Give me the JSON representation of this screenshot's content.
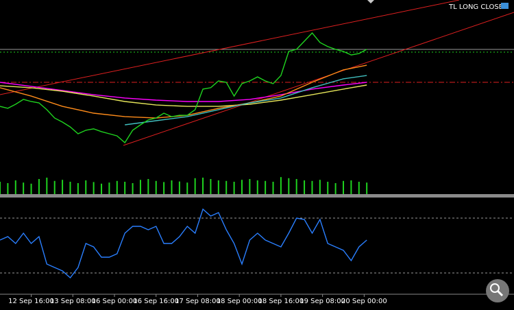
{
  "chart_data": [
    {
      "type": "line",
      "title": "TL LONG CLOSE",
      "x": [
        0,
        3,
        6,
        9,
        12,
        15,
        18,
        21,
        24,
        27,
        30,
        33,
        36,
        39,
        42,
        45,
        48,
        51,
        54,
        57,
        60,
        63,
        66,
        69,
        72,
        75,
        78,
        81,
        84,
        87,
        90,
        93,
        96,
        99,
        102,
        105,
        108,
        111,
        114,
        117,
        120,
        123,
        126,
        129,
        132,
        135,
        138,
        141
      ],
      "xlim": [
        0,
        197.6
      ],
      "xticks": [
        {
          "value": 12,
          "label": "12 Sep 16:00"
        },
        {
          "value": 28,
          "label": "13 Sep 08:00"
        },
        {
          "value": 44,
          "label": "16 Sep 00:00"
        },
        {
          "value": 60,
          "label": "16 Sep 16:00"
        },
        {
          "value": 76,
          "label": "17 Sep 08:00"
        },
        {
          "value": 92,
          "label": "18 Sep 00:00"
        },
        {
          "value": 108,
          "label": "18 Sep 16:00"
        },
        {
          "value": 124,
          "label": "19 Sep 08:00"
        },
        {
          "value": 140,
          "label": "20 Sep 00:00"
        }
      ],
      "ylim": [
        0,
        100
      ],
      "series": [
        {
          "color": "#ff00ff",
          "x": [
            0,
            12,
            24,
            36,
            48,
            60,
            72,
            84,
            96,
            108,
            120,
            132,
            141
          ],
          "values": [
            57.6,
            55.5,
            53.4,
            51.2,
            49.5,
            48.4,
            47.7,
            47.7,
            48.8,
            51.2,
            54.1,
            56.2,
            57.6
          ]
        },
        {
          "color": "#e6e65a",
          "x": [
            0,
            12,
            24,
            36,
            48,
            60,
            72,
            84,
            96,
            108,
            120,
            132,
            141
          ],
          "values": [
            55.8,
            54.8,
            53.0,
            50.5,
            47.7,
            45.9,
            45.2,
            45.2,
            46.3,
            48.4,
            51.2,
            54.1,
            56.2
          ]
        },
        {
          "color": "#ff8c1a",
          "x": [
            0,
            12,
            24,
            36,
            48,
            60,
            72,
            84,
            96,
            108,
            120,
            132,
            141
          ],
          "values": [
            54.8,
            50.5,
            45.2,
            41.7,
            39.9,
            39.2,
            40.6,
            44.2,
            47.0,
            50.5,
            57.6,
            64.0,
            66.4
          ]
        },
        {
          "color": "#40c0c0",
          "x": [
            0,
            12,
            24,
            36,
            48,
            60,
            72,
            84,
            96,
            108,
            120,
            132,
            141
          ],
          "values": [
            null,
            null,
            null,
            null,
            35.7,
            37.8,
            39.9,
            43.5,
            47.0,
            49.5,
            54.8,
            59.4,
            61.1
          ]
        },
        {
          "color": "#1fd31f",
          "values": [
            45.2,
            44.2,
            46.3,
            48.8,
            47.7,
            47.0,
            43.5,
            39.2,
            37.1,
            34.6,
            31.1,
            32.9,
            33.6,
            32.2,
            31.1,
            30.0,
            26.5,
            32.9,
            35.7,
            38.2,
            39.2,
            41.7,
            39.9,
            40.6,
            40.6,
            43.5,
            54.1,
            54.8,
            58.3,
            57.6,
            50.5,
            56.9,
            58.3,
            60.4,
            58.3,
            56.9,
            61.1,
            73.5,
            74.6,
            78.8,
            83.0,
            78.1,
            76.0,
            74.6,
            73.5,
            71.7,
            72.4,
            74.6
          ]
        }
      ]
    },
    {
      "type": "bar",
      "color": "#1fd31f",
      "x": [
        0,
        3,
        6,
        9,
        12,
        15,
        18,
        21,
        24,
        27,
        30,
        33,
        36,
        39,
        42,
        45,
        48,
        51,
        54,
        57,
        60,
        63,
        66,
        69,
        72,
        75,
        78,
        81,
        84,
        87,
        90,
        93,
        96,
        99,
        102,
        105,
        108,
        111,
        114,
        117,
        120,
        123,
        126,
        129,
        132,
        135,
        138,
        141
      ],
      "ylim": [
        0,
        100
      ],
      "values": [
        45,
        40,
        50,
        42,
        38,
        55,
        60,
        48,
        52,
        45,
        40,
        50,
        44,
        38,
        42,
        48,
        45,
        40,
        52,
        55,
        48,
        44,
        50,
        46,
        42,
        58,
        60,
        55,
        50,
        48,
        45,
        52,
        55,
        50,
        48,
        45,
        62,
        58,
        55,
        50,
        48,
        52,
        45,
        40,
        48,
        50,
        45,
        42
      ]
    },
    {
      "type": "line",
      "color": "#2a7fff",
      "x": [
        0,
        3,
        6,
        9,
        12,
        15,
        18,
        21,
        24,
        27,
        30,
        33,
        36,
        39,
        42,
        45,
        48,
        51,
        54,
        57,
        60,
        63,
        66,
        69,
        72,
        75,
        78,
        81,
        84,
        87,
        90,
        93,
        96,
        99,
        102,
        105,
        108,
        111,
        114,
        117,
        120,
        123,
        126,
        129,
        132,
        135,
        138,
        141
      ],
      "ylim": [
        15,
        85
      ],
      "levels": [
        70,
        30
      ],
      "values": [
        54,
        56.5,
        51.5,
        59,
        51.5,
        56.5,
        36.5,
        34,
        31.5,
        26.5,
        34,
        51.5,
        49,
        41.5,
        41.5,
        44,
        59,
        64,
        64,
        61.5,
        64,
        51.5,
        51.5,
        56.5,
        64,
        59,
        76.5,
        71.5,
        74,
        61.5,
        51.5,
        36.5,
        54,
        59,
        54,
        51.5,
        49,
        59,
        70,
        69,
        59,
        69,
        51.5,
        49,
        46.5,
        39,
        49,
        54
      ]
    }
  ]
}
